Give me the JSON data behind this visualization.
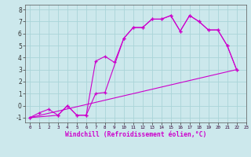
{
  "xlabel": "Windchill (Refroidissement éolien,°C)",
  "xlim": [
    -0.5,
    23
  ],
  "ylim": [
    -1.4,
    8.4
  ],
  "xticks": [
    0,
    1,
    2,
    3,
    4,
    5,
    6,
    7,
    8,
    9,
    10,
    11,
    12,
    13,
    14,
    15,
    16,
    17,
    18,
    19,
    20,
    21,
    22,
    23
  ],
  "yticks": [
    -1,
    0,
    1,
    2,
    3,
    4,
    5,
    6,
    7,
    8
  ],
  "bg_color": "#cce8ec",
  "grid_color": "#aad4d8",
  "line_color": "#cc00cc",
  "line1_x": [
    0,
    1,
    2,
    3,
    4,
    5,
    6,
    7,
    8,
    9,
    10,
    11,
    12,
    13,
    14,
    15,
    16,
    17,
    18,
    19,
    20,
    21,
    22
  ],
  "line1_y": [
    -1,
    -0.6,
    -0.3,
    -0.8,
    0.0,
    -0.8,
    -0.8,
    3.7,
    4.1,
    3.6,
    5.6,
    6.5,
    6.5,
    7.2,
    7.2,
    7.5,
    6.2,
    7.5,
    7.0,
    6.3,
    6.3,
    5.0,
    3.0
  ],
  "line2_x": [
    0,
    3,
    4,
    5,
    6,
    7,
    8,
    10,
    11,
    12,
    13,
    14,
    15,
    16,
    17,
    18,
    19,
    20,
    21,
    22
  ],
  "line2_y": [
    -1,
    -0.8,
    0.0,
    -0.8,
    -0.8,
    1.0,
    1.1,
    5.6,
    6.5,
    6.5,
    7.2,
    7.2,
    7.5,
    6.2,
    7.5,
    7.0,
    6.3,
    6.3,
    5.0,
    3.0
  ],
  "line3_x": [
    0,
    22
  ],
  "line3_y": [
    -1,
    3.0
  ]
}
